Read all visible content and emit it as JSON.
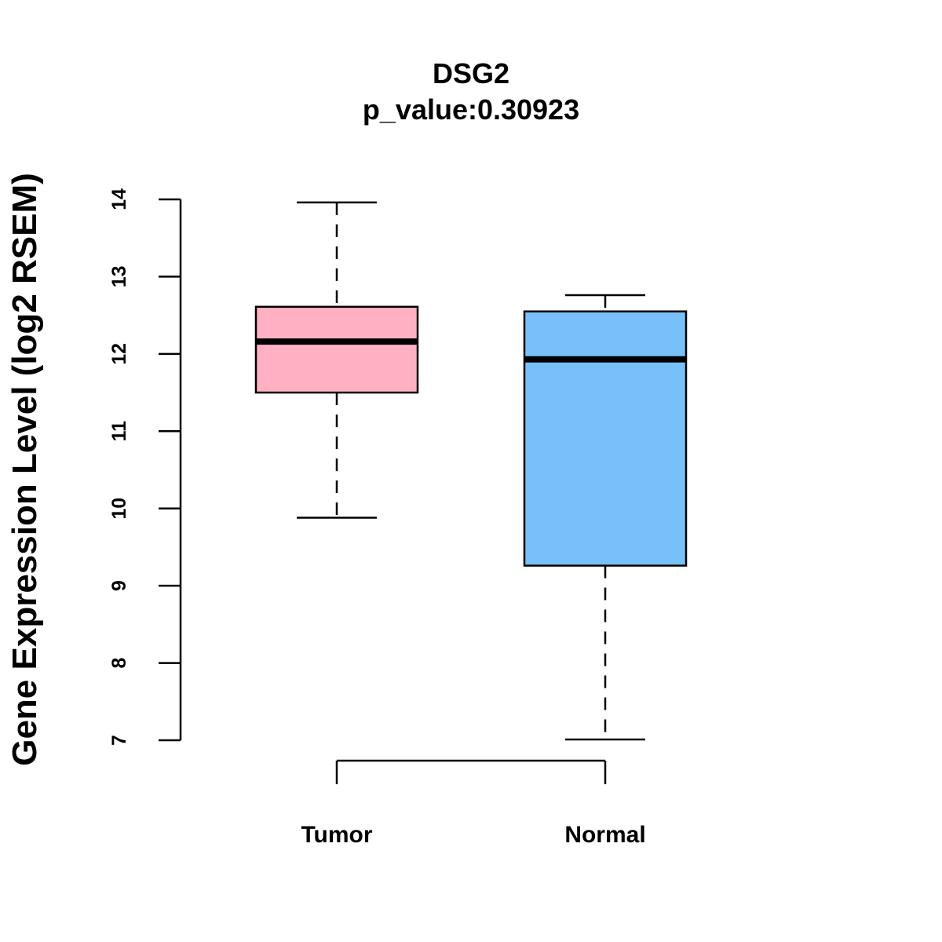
{
  "chart_data": {
    "type": "boxplot",
    "title": "DSG2",
    "subtitle": "p_value:0.30923",
    "xlabel": "",
    "ylabel": "Gene Expression Level (log2 RSEM)",
    "ylim": [
      7,
      14
    ],
    "yticks": [
      7,
      8,
      9,
      10,
      11,
      12,
      13,
      14
    ],
    "grid": false,
    "categories": [
      "Tumor",
      "Normal"
    ],
    "boxes": [
      {
        "name": "Tumor",
        "color": "#FFB1C3",
        "whisker_low": 9.88,
        "q1": 11.5,
        "median": 12.16,
        "q3": 12.61,
        "whisker_high": 13.96
      },
      {
        "name": "Normal",
        "color": "#78C1F8",
        "whisker_low": 7.01,
        "q1": 9.26,
        "median": 11.93,
        "q3": 12.55,
        "whisker_high": 12.76
      }
    ]
  }
}
